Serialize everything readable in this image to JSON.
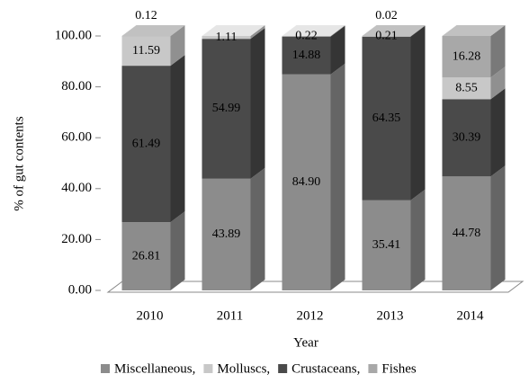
{
  "chart_data": {
    "type": "bar3d_stacked",
    "categories": [
      "2010",
      "2011",
      "2012",
      "2013",
      "2014"
    ],
    "series": [
      {
        "name": "Miscellaneous,",
        "color": "#8c8c8c",
        "values": [
          26.81,
          43.89,
          84.9,
          35.41,
          44.78
        ],
        "value_labels": [
          "26.81",
          "43.89",
          "84.90",
          "35.41",
          "44.78"
        ]
      },
      {
        "name": "Molluscs,",
        "color": "#c8c8c8",
        "values": [
          11.59,
          1.11,
          0.22,
          0.21,
          8.55
        ],
        "value_labels": [
          "11.59",
          "1.11",
          "0.22",
          "0.21",
          "8.55"
        ]
      },
      {
        "name": "Crustaceans,",
        "color": "#4a4a4a",
        "values": [
          61.49,
          54.99,
          14.88,
          64.35,
          30.39
        ],
        "value_labels": [
          "61.49",
          "54.99",
          "14.88",
          "64.35",
          "30.39"
        ]
      },
      {
        "name": "Fishes",
        "color": "#a8a8a8",
        "values": [
          0.12,
          null,
          null,
          0.02,
          16.28
        ],
        "value_labels": [
          "0.12",
          null,
          null,
          "0.02",
          "16.28"
        ]
      }
    ],
    "xlabel": "Year",
    "ylabel": "% of gut contents",
    "ylim": [
      0,
      100
    ],
    "yticks": [
      {
        "value": 0,
        "label": "0.00"
      },
      {
        "value": 20,
        "label": "20.00"
      },
      {
        "value": 40,
        "label": "40.00"
      },
      {
        "value": 60,
        "label": "60.00"
      },
      {
        "value": 80,
        "label": "80.00"
      },
      {
        "value": 100,
        "label": "100.00"
      }
    ]
  }
}
